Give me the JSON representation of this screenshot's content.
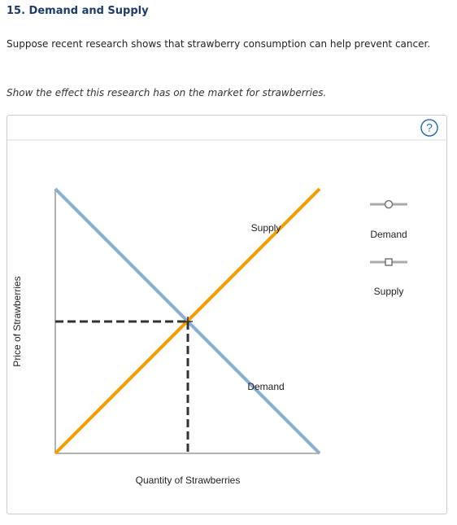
{
  "header": {
    "title": "15. Demand and Supply"
  },
  "question": "Suppose recent research shows that strawberry consumption can help prevent cancer.",
  "instruction": "Show the effect this research has on the market for strawberries.",
  "graph": {
    "x_axis_label": "Quantity of Strawberries",
    "y_axis_label": "Price of Strawberries",
    "curve_labels": {
      "supply": "Supply",
      "demand": "Demand"
    },
    "legend": [
      {
        "label": "Demand"
      },
      {
        "label": "Supply"
      }
    ],
    "help": "?"
  }
}
